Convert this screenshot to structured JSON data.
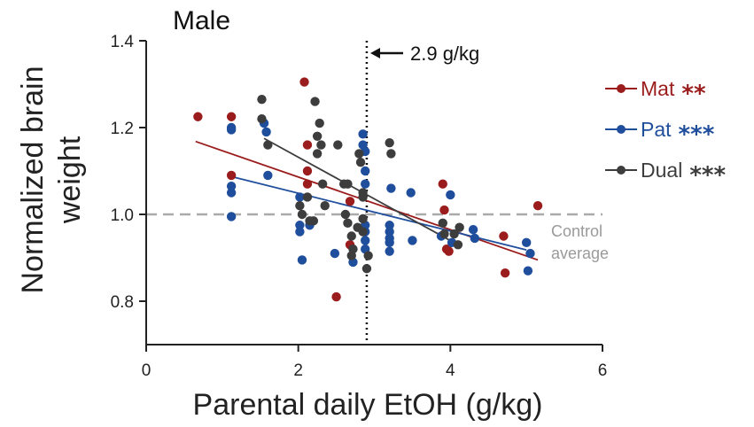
{
  "chart_data": {
    "type": "scatter",
    "title": "Male",
    "xlabel": "Parental daily EtOH (g/kg)",
    "ylabel": "Normalized brain weight",
    "xlim": [
      0,
      6
    ],
    "ylim": [
      0.7,
      1.4
    ],
    "xticks": [
      0,
      2,
      4,
      6
    ],
    "yticks": [
      0.8,
      1.0,
      1.2,
      1.4
    ],
    "xtick_labels": [
      "0",
      "2",
      "4",
      "6"
    ],
    "ytick_labels": [
      "0.8",
      "1.0",
      "1.2",
      "1.4"
    ],
    "grid": false,
    "legend_position": "right",
    "reference_lines": [
      {
        "orientation": "horizontal",
        "value": 1.0,
        "style": "dashed",
        "color": "#aaaaaa",
        "label": "Control average"
      },
      {
        "orientation": "vertical",
        "value": 2.9,
        "style": "dotted",
        "color": "#111111",
        "label": "2.9 g/kg"
      }
    ],
    "annotations": {
      "threshold_label": "2.9 g/kg",
      "control_line1": "Control",
      "control_line2": "average"
    },
    "series": [
      {
        "name": "Mat",
        "significance": "**",
        "color": "#9b1c1c",
        "fit": {
          "x": [
            0.65,
            5.15
          ],
          "y": [
            1.168,
            0.895
          ]
        },
        "points": [
          [
            0.68,
            1.225
          ],
          [
            1.12,
            1.225
          ],
          [
            1.12,
            1.09
          ],
          [
            2.08,
            1.305
          ],
          [
            2.12,
            1.16
          ],
          [
            2.12,
            1.1
          ],
          [
            2.12,
            1.07
          ],
          [
            2.5,
            0.81
          ],
          [
            2.68,
            1.03
          ],
          [
            2.68,
            0.93
          ],
          [
            3.9,
            1.07
          ],
          [
            3.92,
            1.01
          ],
          [
            3.95,
            0.92
          ],
          [
            3.98,
            0.915
          ],
          [
            4.7,
            0.95
          ],
          [
            4.72,
            0.865
          ],
          [
            5.15,
            1.02
          ]
        ]
      },
      {
        "name": "Pat",
        "significance": "***",
        "color": "#1f4e9c",
        "fit": {
          "x": [
            1.1,
            5.0
          ],
          "y": [
            1.088,
            0.918
          ]
        },
        "points": [
          [
            1.12,
            1.2
          ],
          [
            1.12,
            1.195
          ],
          [
            1.12,
            1.065
          ],
          [
            1.12,
            1.05
          ],
          [
            1.12,
            0.995
          ],
          [
            1.55,
            1.21
          ],
          [
            1.58,
            1.19
          ],
          [
            1.6,
            1.09
          ],
          [
            2.02,
            1.04
          ],
          [
            2.02,
            0.975
          ],
          [
            2.02,
            0.96
          ],
          [
            2.05,
            0.895
          ],
          [
            2.15,
            0.975
          ],
          [
            2.48,
            0.91
          ],
          [
            2.72,
            0.89
          ],
          [
            2.85,
            1.185
          ],
          [
            2.85,
            1.16
          ],
          [
            2.88,
            1.145
          ],
          [
            2.88,
            1.1
          ],
          [
            2.88,
            1.07
          ],
          [
            2.88,
            0.975
          ],
          [
            2.88,
            0.96
          ],
          [
            2.88,
            0.94
          ],
          [
            2.88,
            0.92
          ],
          [
            3.2,
            0.975
          ],
          [
            3.2,
            0.96
          ],
          [
            3.2,
            0.945
          ],
          [
            3.2,
            0.935
          ],
          [
            3.2,
            0.915
          ],
          [
            3.22,
            1.06
          ],
          [
            3.48,
            1.05
          ],
          [
            3.5,
            0.94
          ],
          [
            3.88,
            0.95
          ],
          [
            4.0,
            1.045
          ],
          [
            4.02,
            0.935
          ],
          [
            4.3,
            0.965
          ],
          [
            4.32,
            0.945
          ],
          [
            5.0,
            0.935
          ],
          [
            5.02,
            0.87
          ],
          [
            5.05,
            0.91
          ]
        ]
      },
      {
        "name": "Dual",
        "significance": "***",
        "color": "#3d3d3d",
        "fit": {
          "x": [
            1.55,
            4.1
          ],
          "y": [
            1.175,
            0.93
          ]
        },
        "points": [
          [
            1.52,
            1.265
          ],
          [
            1.52,
            1.22
          ],
          [
            1.6,
            1.16
          ],
          [
            2.02,
            1.02
          ],
          [
            2.05,
            1.0
          ],
          [
            2.12,
            1.04
          ],
          [
            2.15,
            0.985
          ],
          [
            2.22,
            1.26
          ],
          [
            2.25,
            1.18
          ],
          [
            2.28,
            1.21
          ],
          [
            2.25,
            1.14
          ],
          [
            2.3,
            1.16
          ],
          [
            2.32,
            1.07
          ],
          [
            2.35,
            1.02
          ],
          [
            2.2,
            0.985
          ],
          [
            2.52,
            1.16
          ],
          [
            2.6,
            1.07
          ],
          [
            2.65,
            1.07
          ],
          [
            2.62,
            1.0
          ],
          [
            2.65,
            0.98
          ],
          [
            2.7,
            0.95
          ],
          [
            2.72,
            0.92
          ],
          [
            2.7,
            0.905
          ],
          [
            2.78,
            0.97
          ],
          [
            2.8,
            1.14
          ],
          [
            2.82,
            1.12
          ],
          [
            2.85,
            1.05
          ],
          [
            2.85,
            1.04
          ],
          [
            2.85,
            0.99
          ],
          [
            2.85,
            0.96
          ],
          [
            2.9,
            0.875
          ],
          [
            2.92,
            0.905
          ],
          [
            3.2,
            1.165
          ],
          [
            3.22,
            1.14
          ],
          [
            3.9,
            0.98
          ],
          [
            3.92,
            0.955
          ],
          [
            4.05,
            0.955
          ],
          [
            4.1,
            0.93
          ],
          [
            4.12,
            0.97
          ]
        ]
      }
    ]
  }
}
